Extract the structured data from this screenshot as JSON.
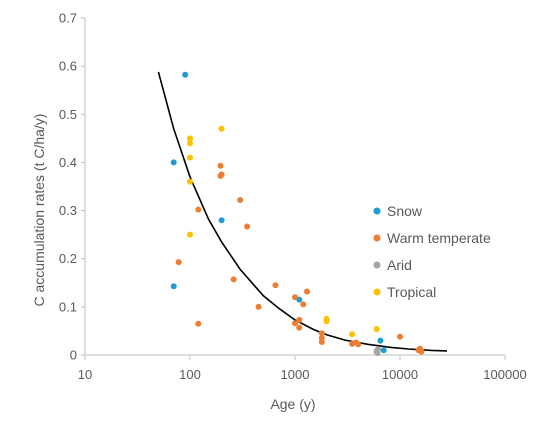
{
  "chart_data": {
    "type": "scatter",
    "title": "",
    "xlabel": "Age (y)",
    "ylabel": "C accumulation rates (t C/ha/y)",
    "x_scale": "log",
    "xlim": [
      10,
      100000
    ],
    "ylim": [
      0,
      0.7
    ],
    "x_ticks": [
      10,
      100,
      1000,
      10000,
      100000
    ],
    "x_tick_labels": [
      "10",
      "100",
      "1000",
      "10000",
      "100000"
    ],
    "y_ticks": [
      0,
      0.1,
      0.2,
      0.3,
      0.4,
      0.5,
      0.6,
      0.7
    ],
    "y_tick_labels": [
      "0",
      "0.1",
      "0.2",
      "0.3",
      "0.4",
      "0.5",
      "0.6",
      "0.7"
    ],
    "grid": false,
    "legend_position": "right",
    "series": [
      {
        "name": "Snow",
        "color": "#1f9bd6",
        "points": [
          [
            70,
            0.4
          ],
          [
            70,
            0.143
          ],
          [
            90,
            0.582
          ],
          [
            200,
            0.28
          ],
          [
            1100,
            0.115
          ],
          [
            6500,
            0.03
          ],
          [
            7000,
            0.01
          ]
        ]
      },
      {
        "name": "Warm temperate",
        "color": "#ed7d31",
        "points": [
          [
            78,
            0.193
          ],
          [
            120,
            0.065
          ],
          [
            120,
            0.302
          ],
          [
            195,
            0.393
          ],
          [
            195,
            0.372
          ],
          [
            200,
            0.375
          ],
          [
            300,
            0.322
          ],
          [
            350,
            0.267
          ],
          [
            260,
            0.157
          ],
          [
            450,
            0.1
          ],
          [
            650,
            0.145
          ],
          [
            1000,
            0.12
          ],
          [
            1000,
            0.066
          ],
          [
            1100,
            0.057
          ],
          [
            1100,
            0.073
          ],
          [
            1200,
            0.105
          ],
          [
            1300,
            0.132
          ],
          [
            1800,
            0.045
          ],
          [
            1800,
            0.035
          ],
          [
            1800,
            0.027
          ],
          [
            3500,
            0.023
          ],
          [
            3800,
            0.026
          ],
          [
            4000,
            0.022
          ],
          [
            10000,
            0.038
          ],
          [
            15000,
            0.01
          ],
          [
            15500,
            0.013
          ],
          [
            16000,
            0.007
          ]
        ]
      },
      {
        "name": "Arid",
        "color": "#a5a5a5",
        "points": [
          [
            6000,
            0.006
          ],
          [
            6000,
            0.009
          ],
          [
            6100,
            0.004
          ],
          [
            6200,
            0.012
          ]
        ]
      },
      {
        "name": "Tropical",
        "color": "#ffc000",
        "points": [
          [
            100,
            0.45
          ],
          [
            100,
            0.44
          ],
          [
            100,
            0.41
          ],
          [
            100,
            0.36
          ],
          [
            100,
            0.25
          ],
          [
            200,
            0.47
          ],
          [
            2000,
            0.075
          ],
          [
            2000,
            0.07
          ],
          [
            3500,
            0.043
          ],
          [
            6000,
            0.054
          ]
        ]
      }
    ],
    "trendline": {
      "type": "power",
      "color": "#000000",
      "points": [
        [
          50,
          0.588
        ],
        [
          70,
          0.47
        ],
        [
          100,
          0.37
        ],
        [
          150,
          0.282
        ],
        [
          200,
          0.235
        ],
        [
          300,
          0.178
        ],
        [
          500,
          0.123
        ],
        [
          700,
          0.097
        ],
        [
          1000,
          0.073
        ],
        [
          1500,
          0.053
        ],
        [
          2000,
          0.042
        ],
        [
          3000,
          0.031
        ],
        [
          5000,
          0.022
        ],
        [
          8000,
          0.016
        ],
        [
          12000,
          0.0125
        ],
        [
          20000,
          0.0095
        ],
        [
          28000,
          0.0085
        ]
      ]
    }
  }
}
